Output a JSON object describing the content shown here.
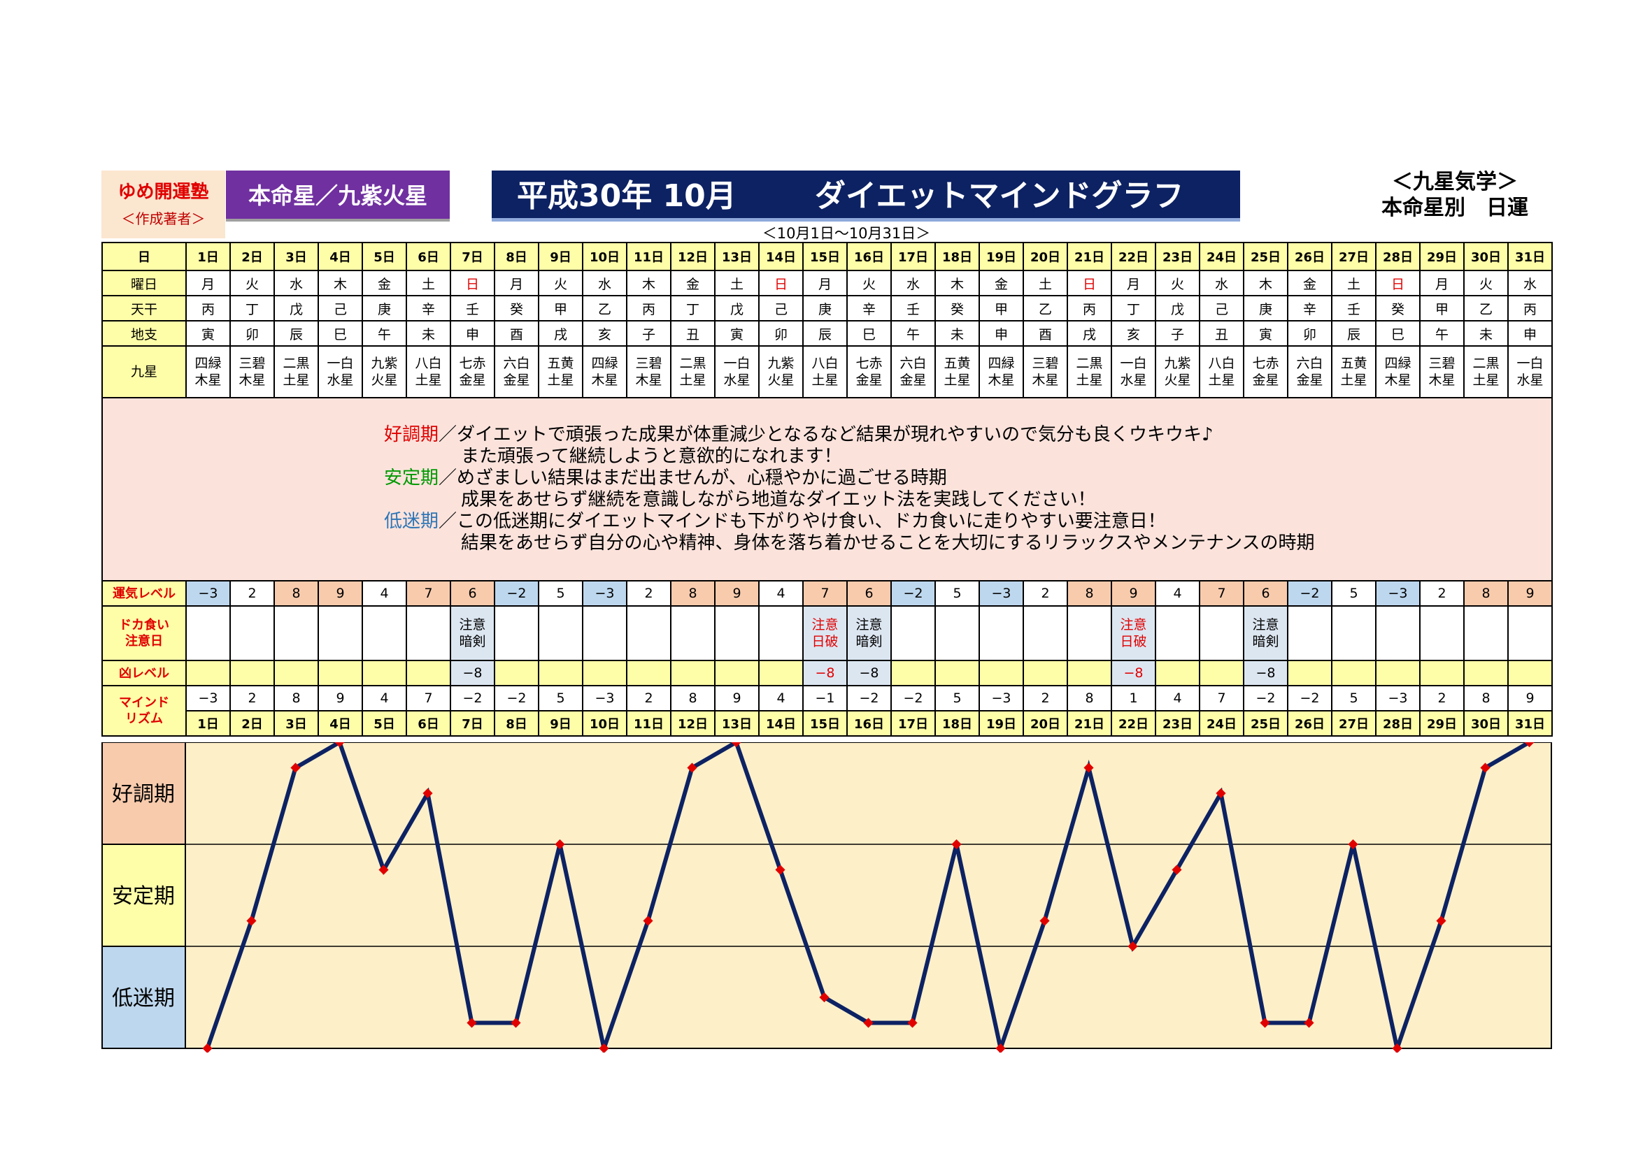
{
  "header": {
    "org_name": "ゆめ開運塾",
    "org_role": "＜作成著者＞",
    "honmei": "本命星／九紫火星",
    "title_left": "平成30年 10月",
    "title_right": "ダイエットマインドグラフ",
    "period": "＜10月1日～10月31日＞",
    "sub_title_1": "＜九星気学＞",
    "sub_title_2": "本命星別　日運"
  },
  "labels": {
    "day": "日",
    "weekday": "曜日",
    "tenkan": "天干",
    "chishi": "地支",
    "kyusei": "九星",
    "luck": "運気レベル",
    "dokagui": "ドカ食い\n注意日",
    "kyo": "凶レベル",
    "mind": "マインド\nリズム"
  },
  "message": {
    "good_label": "好調期",
    "good_1": "／ダイエットで頑張った成果が体重減少となるなど結果が現れやすいので気分も良くウキウキ♪",
    "good_2": "また頑張って継続しようと意欲的になれます！",
    "stable_label": "安定期",
    "stable_1": "／めざましい結果はまだ出ませんが、心穏やかに過ごせる時期",
    "stable_2": "成果をあせらず継続を意識しながら地道なダイエット法を実践してください！",
    "low_label": "低迷期",
    "low_1": "／この低迷期にダイエットマインドも下がりやけ食い、ドカ食いに走りやすい要注意日！",
    "low_2": "結果をあせらず自分の心や精神、身体を落ち着かせることを大切にするリラックスやメンテナンスの時期"
  },
  "days": [
    "1日",
    "2日",
    "3日",
    "4日",
    "5日",
    "6日",
    "7日",
    "8日",
    "9日",
    "10日",
    "11日",
    "12日",
    "13日",
    "14日",
    "15日",
    "16日",
    "17日",
    "18日",
    "19日",
    "20日",
    "21日",
    "22日",
    "23日",
    "24日",
    "25日",
    "26日",
    "27日",
    "28日",
    "29日",
    "30日",
    "31日"
  ],
  "weekdays": [
    "月",
    "火",
    "水",
    "木",
    "金",
    "土",
    "日",
    "月",
    "火",
    "水",
    "木",
    "金",
    "土",
    "日",
    "月",
    "火",
    "水",
    "木",
    "金",
    "土",
    "日",
    "月",
    "火",
    "水",
    "木",
    "金",
    "土",
    "日",
    "月",
    "火",
    "水"
  ],
  "sunday_color": "#e00000",
  "tenkan": [
    "丙",
    "丁",
    "戊",
    "己",
    "庚",
    "辛",
    "壬",
    "癸",
    "甲",
    "乙",
    "丙",
    "丁",
    "戊",
    "己",
    "庚",
    "辛",
    "壬",
    "癸",
    "甲",
    "乙",
    "丙",
    "丁",
    "戊",
    "己",
    "庚",
    "辛",
    "壬",
    "癸",
    "甲",
    "乙",
    "丙"
  ],
  "chishi": [
    "寅",
    "卯",
    "辰",
    "巳",
    "午",
    "未",
    "申",
    "酉",
    "戌",
    "亥",
    "子",
    "丑",
    "寅",
    "卯",
    "辰",
    "巳",
    "午",
    "未",
    "申",
    "酉",
    "戌",
    "亥",
    "子",
    "丑",
    "寅",
    "卯",
    "辰",
    "巳",
    "午",
    "未",
    "申"
  ],
  "kyusei_top": [
    "四緑",
    "三碧",
    "二黒",
    "一白",
    "九紫",
    "八白",
    "七赤",
    "六白",
    "五黄",
    "四緑",
    "三碧",
    "二黒",
    "一白",
    "九紫",
    "八白",
    "七赤",
    "六白",
    "五黄",
    "四緑",
    "三碧",
    "二黒",
    "一白",
    "九紫",
    "八白",
    "七赤",
    "六白",
    "五黄",
    "四緑",
    "三碧",
    "二黒",
    "一白"
  ],
  "kyusei_bottom": [
    "木星",
    "木星",
    "土星",
    "水星",
    "火星",
    "土星",
    "金星",
    "金星",
    "土星",
    "木星",
    "木星",
    "土星",
    "水星",
    "火星",
    "土星",
    "金星",
    "金星",
    "土星",
    "木星",
    "木星",
    "土星",
    "水星",
    "火星",
    "土星",
    "金星",
    "金星",
    "土星",
    "木星",
    "木星",
    "土星",
    "水星"
  ],
  "luck_level": [
    "−3",
    "2",
    "8",
    "9",
    "4",
    "7",
    "6",
    "−2",
    "5",
    "−3",
    "2",
    "8",
    "9",
    "4",
    "7",
    "6",
    "−2",
    "5",
    "−3",
    "2",
    "8",
    "9",
    "4",
    "7",
    "6",
    "−2",
    "5",
    "−3",
    "2",
    "8",
    "9"
  ],
  "dokagui": [
    "",
    "",
    "",
    "",
    "",
    "",
    "注意\n暗剣",
    "",
    "",
    "",
    "",
    "",
    "",
    "",
    "注意\n日破",
    "注意\n暗剣",
    "",
    "",
    "",
    "",
    "",
    "注意\n日破",
    "",
    "",
    "注意\n暗剣",
    "",
    "",
    "",
    "",
    "",
    ""
  ],
  "kyo_level": [
    "",
    "",
    "",
    "",
    "",
    "",
    "−8",
    "",
    "",
    "",
    "",
    "",
    "",
    "",
    "−8",
    "−8",
    "",
    "",
    "",
    "",
    "",
    "−8",
    "",
    "",
    "−8",
    "",
    "",
    "",
    "",
    "",
    ""
  ],
  "mind_rhythm": [
    "−3",
    "2",
    "8",
    "9",
    "4",
    "7",
    "−2",
    "−2",
    "5",
    "−3",
    "2",
    "8",
    "9",
    "4",
    "−1",
    "−2",
    "−2",
    "5",
    "−3",
    "2",
    "8",
    "1",
    "4",
    "7",
    "−2",
    "−2",
    "5",
    "−3",
    "2",
    "8",
    "9"
  ],
  "chart_data": {
    "type": "line",
    "categories": [
      "1日",
      "2日",
      "3日",
      "4日",
      "5日",
      "6日",
      "7日",
      "8日",
      "9日",
      "10日",
      "11日",
      "12日",
      "13日",
      "14日",
      "15日",
      "16日",
      "17日",
      "18日",
      "19日",
      "20日",
      "21日",
      "22日",
      "23日",
      "24日",
      "25日",
      "26日",
      "27日",
      "28日",
      "29日",
      "30日",
      "31日"
    ],
    "values": [
      -3,
      2,
      8,
      9,
      4,
      7,
      -2,
      -2,
      5,
      -3,
      2,
      8,
      9,
      4,
      -1,
      -2,
      -2,
      5,
      -3,
      2,
      8,
      1,
      4,
      7,
      -2,
      -2,
      5,
      -3,
      2,
      8,
      9
    ],
    "ylim": [
      -3,
      9
    ],
    "bands": [
      {
        "label": "好調期",
        "range": [
          5,
          9
        ],
        "color": "#f8cbad"
      },
      {
        "label": "安定期",
        "range": [
          1,
          5
        ],
        "color": "#fffea8"
      },
      {
        "label": "低迷期",
        "range": [
          -3,
          1
        ],
        "color": "#bdd7ee"
      }
    ],
    "line_color": "#0d2263",
    "marker_color": "#e00000",
    "plot_bg": "#fdf0c9"
  }
}
